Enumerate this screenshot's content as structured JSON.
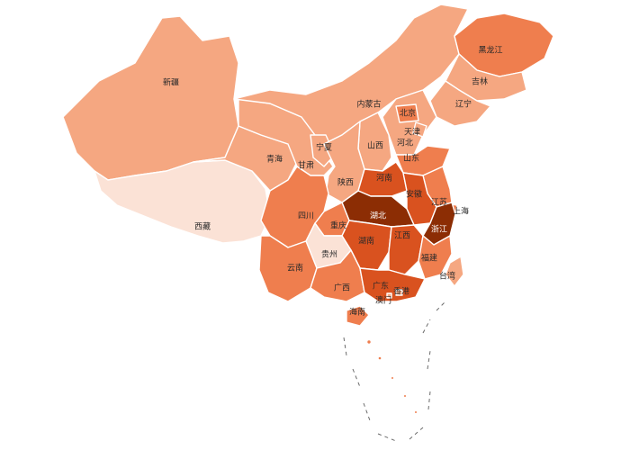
{
  "map": {
    "levels": {
      "1": "#fbe2d6",
      "2": "#f5a781",
      "3": "#ef7e4e",
      "4": "#d9521f",
      "5": "#8c2d04"
    },
    "provinces": {
      "xinjiang": {
        "name": "新疆",
        "level": 2
      },
      "xizang": {
        "name": "西藏",
        "level": 1
      },
      "qinghai": {
        "name": "青海",
        "level": 2
      },
      "gansu": {
        "name": "甘肃",
        "level": 2
      },
      "neimenggu": {
        "name": "内蒙古",
        "level": 2
      },
      "heilongjiang": {
        "name": "黑龙江",
        "level": 3
      },
      "jilin": {
        "name": "吉林",
        "level": 2
      },
      "liaoning": {
        "name": "辽宁",
        "level": 2
      },
      "beijing": {
        "name": "北京",
        "level": 3
      },
      "tianjin": {
        "name": "天津",
        "level": 2
      },
      "hebei": {
        "name": "河北",
        "level": 2
      },
      "shanxi": {
        "name": "山西",
        "level": 2
      },
      "shandong": {
        "name": "山东",
        "level": 3
      },
      "ningxia": {
        "name": "宁夏",
        "level": 2
      },
      "shaanxi": {
        "name": "陕西",
        "level": 2
      },
      "henan": {
        "name": "河南",
        "level": 4
      },
      "anhui": {
        "name": "安徽",
        "level": 4
      },
      "jiangsu": {
        "name": "江苏",
        "level": 3
      },
      "shanghai": {
        "name": "上海",
        "level": 3
      },
      "zhejiang": {
        "name": "浙江",
        "level": 5
      },
      "hubei": {
        "name": "湖北",
        "level": 5
      },
      "chongqing": {
        "name": "重庆",
        "level": 3
      },
      "sichuan": {
        "name": "四川",
        "level": 3
      },
      "hunan": {
        "name": "湖南",
        "level": 4
      },
      "jiangxi": {
        "name": "江西",
        "level": 4
      },
      "fujian": {
        "name": "福建",
        "level": 3
      },
      "guizhou": {
        "name": "贵州",
        "level": 1
      },
      "yunnan": {
        "name": "云南",
        "level": 3
      },
      "guangxi": {
        "name": "广西",
        "level": 3
      },
      "guangdong": {
        "name": "广东",
        "level": 4
      },
      "hainan": {
        "name": "海南",
        "level": 3
      },
      "hongkong": {
        "name": "香港",
        "level": 2
      },
      "macau": {
        "name": "澳门",
        "level": 2
      },
      "taiwan": {
        "name": "台湾",
        "level": 2
      }
    }
  }
}
